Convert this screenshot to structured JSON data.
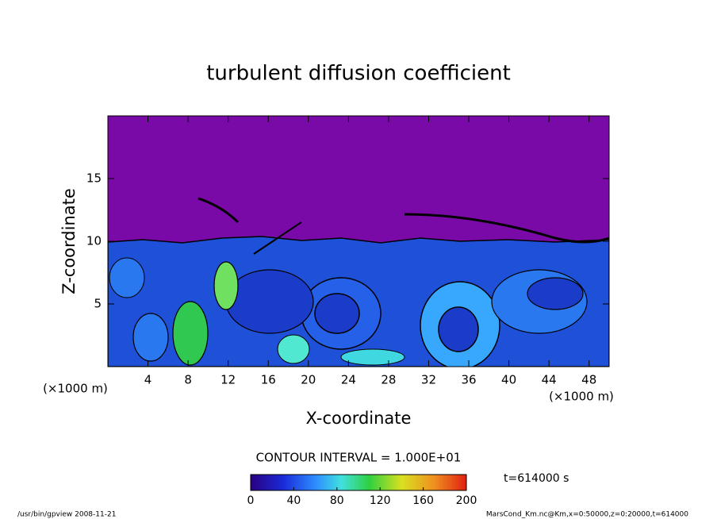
{
  "chart_data": {
    "type": "contour",
    "title": "turbulent diffusion coefficient",
    "xlabel": "X-coordinate",
    "ylabel": "Z-coordinate",
    "x_unit": "(×1000 m)",
    "xlim": [
      0,
      50
    ],
    "xticks": [
      4,
      8,
      12,
      16,
      20,
      24,
      28,
      32,
      36,
      40,
      44,
      48
    ],
    "ylim": [
      0,
      20
    ],
    "yticks": [
      5,
      10,
      15
    ],
    "contour_interval": "CONTOUR INTERVAL = 1.000E+01",
    "time_label": "t=614000 s",
    "colorbar_lim": [
      0,
      200
    ],
    "colorbar_ticks": [
      0,
      40,
      80,
      120,
      160,
      200
    ],
    "footer_left": "/usr/bin/gpview   2008-11-21",
    "footer_right": "MarsCond_Km.nc@Km,x=0:50000,z=0:20000,t=614000"
  }
}
